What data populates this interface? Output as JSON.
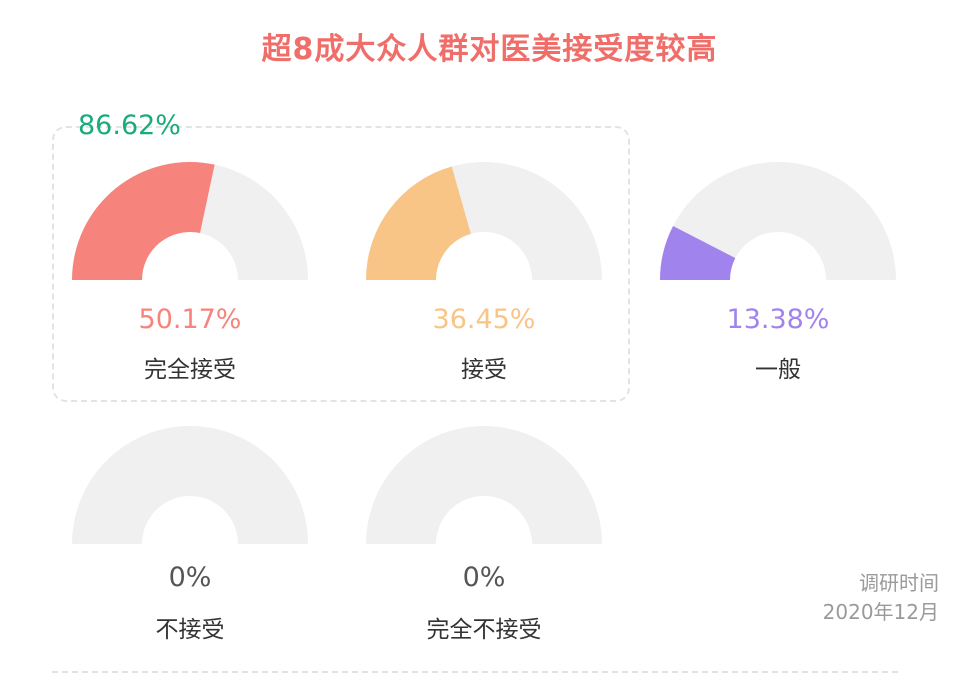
{
  "chart_data": {
    "type": "gauge",
    "title": "超8成大众人群对医美接受度较高",
    "highlight": {
      "value": "86.62%",
      "color": "#1aab7d"
    },
    "items": [
      {
        "label": "完全接受",
        "value_text": "50.17%",
        "value": 50.17,
        "color": "#f7847c"
      },
      {
        "label": "接受",
        "value_text": "36.45%",
        "value": 36.45,
        "color": "#f9c586"
      },
      {
        "label": "一般",
        "value_text": "13.38%",
        "value": 13.38,
        "color": "#a183ee"
      },
      {
        "label": "不接受",
        "value_text": "0%",
        "value": 0,
        "color": "#555555"
      },
      {
        "label": "完全不接受",
        "value_text": "0%",
        "value": 0,
        "color": "#555555"
      }
    ],
    "track_color": "#f0f0f0",
    "title_color": "#f06e6a"
  },
  "note": {
    "line1": "调研时间",
    "line2": "2020年12月"
  }
}
